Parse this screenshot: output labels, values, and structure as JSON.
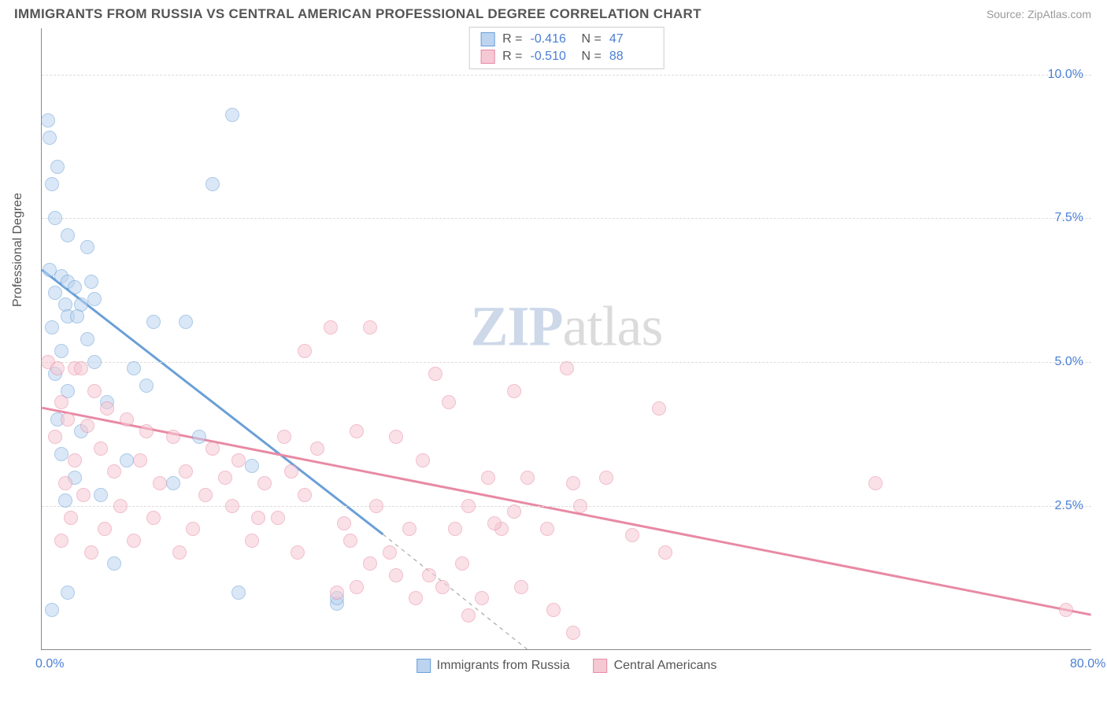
{
  "title": "IMMIGRANTS FROM RUSSIA VS CENTRAL AMERICAN PROFESSIONAL DEGREE CORRELATION CHART",
  "source": "Source: ZipAtlas.com",
  "y_axis_label": "Professional Degree",
  "watermark": {
    "bold": "ZIP",
    "rest": "atlas"
  },
  "chart": {
    "type": "scatter",
    "xlim": [
      0,
      80
    ],
    "ylim": [
      0,
      10.8
    ],
    "x_ticks": [
      {
        "value": 0,
        "label": "0.0%"
      },
      {
        "value": 80,
        "label": "80.0%"
      }
    ],
    "y_ticks": [
      {
        "value": 2.5,
        "label": "2.5%"
      },
      {
        "value": 5.0,
        "label": "5.0%"
      },
      {
        "value": 7.5,
        "label": "7.5%"
      },
      {
        "value": 10.0,
        "label": "10.0%"
      }
    ],
    "grid_color": "#dddddd",
    "axis_color": "#888888",
    "background_color": "#ffffff",
    "marker_radius": 9,
    "marker_stroke_width": 1.5,
    "trend_line_width": 3
  },
  "series": [
    {
      "name": "Immigrants from Russia",
      "fill_color": "#bcd4f0",
      "stroke_color": "#6a9fd8",
      "fill_opacity": 0.55,
      "stats": {
        "R": "-0.416",
        "N": "47"
      },
      "trend": {
        "x1": 0,
        "y1": 6.6,
        "x2": 26,
        "y2": 2.0,
        "dashed_x2": 37,
        "dashed_y2": 0
      },
      "points": [
        [
          0.5,
          9.2
        ],
        [
          0.6,
          8.9
        ],
        [
          1.2,
          8.4
        ],
        [
          0.8,
          8.1
        ],
        [
          1.0,
          7.5
        ],
        [
          2.0,
          7.2
        ],
        [
          3.5,
          7.0
        ],
        [
          0.6,
          6.6
        ],
        [
          1.5,
          6.5
        ],
        [
          2.0,
          6.4
        ],
        [
          3.8,
          6.4
        ],
        [
          2.5,
          6.3
        ],
        [
          1.0,
          6.2
        ],
        [
          4.0,
          6.1
        ],
        [
          1.8,
          6.0
        ],
        [
          3.0,
          6.0
        ],
        [
          2.0,
          5.8
        ],
        [
          2.7,
          5.8
        ],
        [
          8.5,
          5.7
        ],
        [
          0.8,
          5.6
        ],
        [
          11.0,
          5.7
        ],
        [
          14.5,
          9.3
        ],
        [
          13.0,
          8.1
        ],
        [
          1.5,
          5.2
        ],
        [
          4.0,
          5.0
        ],
        [
          7.0,
          4.9
        ],
        [
          1.0,
          4.8
        ],
        [
          8.0,
          4.6
        ],
        [
          2.0,
          4.5
        ],
        [
          5.0,
          4.3
        ],
        [
          1.2,
          4.0
        ],
        [
          3.0,
          3.8
        ],
        [
          12.0,
          3.7
        ],
        [
          1.5,
          3.4
        ],
        [
          6.5,
          3.3
        ],
        [
          16.0,
          3.2
        ],
        [
          2.5,
          3.0
        ],
        [
          10.0,
          2.9
        ],
        [
          4.5,
          2.7
        ],
        [
          1.8,
          2.6
        ],
        [
          5.5,
          1.5
        ],
        [
          2.0,
          1.0
        ],
        [
          15.0,
          1.0
        ],
        [
          0.8,
          0.7
        ],
        [
          22.5,
          0.8
        ],
        [
          22.5,
          0.9
        ],
        [
          3.5,
          5.4
        ]
      ]
    },
    {
      "name": "Central Americans",
      "fill_color": "#f5c9d4",
      "stroke_color": "#e88aa4",
      "fill_opacity": 0.55,
      "stats": {
        "R": "-0.510",
        "N": "88"
      },
      "trend": {
        "x1": 0,
        "y1": 4.2,
        "x2": 80,
        "y2": 0.6
      },
      "points": [
        [
          0.5,
          5.0
        ],
        [
          1.2,
          4.9
        ],
        [
          2.5,
          4.9
        ],
        [
          3.0,
          4.9
        ],
        [
          22.0,
          5.6
        ],
        [
          25.0,
          5.6
        ],
        [
          20.0,
          5.2
        ],
        [
          4.0,
          4.5
        ],
        [
          30.0,
          4.8
        ],
        [
          40.0,
          4.9
        ],
        [
          1.5,
          4.3
        ],
        [
          36.0,
          4.5
        ],
        [
          5.0,
          4.2
        ],
        [
          31.0,
          4.3
        ],
        [
          2.0,
          4.0
        ],
        [
          6.5,
          4.0
        ],
        [
          3.5,
          3.9
        ],
        [
          8.0,
          3.8
        ],
        [
          24.0,
          3.8
        ],
        [
          47.0,
          4.2
        ],
        [
          1.0,
          3.7
        ],
        [
          10.0,
          3.7
        ],
        [
          18.5,
          3.7
        ],
        [
          27.0,
          3.7
        ],
        [
          4.5,
          3.5
        ],
        [
          13.0,
          3.5
        ],
        [
          21.0,
          3.5
        ],
        [
          2.5,
          3.3
        ],
        [
          7.5,
          3.3
        ],
        [
          15.0,
          3.3
        ],
        [
          29.0,
          3.3
        ],
        [
          5.5,
          3.1
        ],
        [
          11.0,
          3.1
        ],
        [
          34.0,
          3.0
        ],
        [
          37.0,
          3.0
        ],
        [
          43.0,
          3.0
        ],
        [
          1.8,
          2.9
        ],
        [
          9.0,
          2.9
        ],
        [
          17.0,
          2.9
        ],
        [
          40.5,
          2.9
        ],
        [
          63.5,
          2.9
        ],
        [
          3.2,
          2.7
        ],
        [
          12.5,
          2.7
        ],
        [
          20.0,
          2.7
        ],
        [
          6.0,
          2.5
        ],
        [
          14.5,
          2.5
        ],
        [
          25.5,
          2.5
        ],
        [
          32.5,
          2.5
        ],
        [
          2.2,
          2.3
        ],
        [
          8.5,
          2.3
        ],
        [
          18.0,
          2.3
        ],
        [
          23.0,
          2.2
        ],
        [
          4.8,
          2.1
        ],
        [
          11.5,
          2.1
        ],
        [
          28.0,
          2.1
        ],
        [
          31.5,
          2.1
        ],
        [
          35.0,
          2.1
        ],
        [
          38.5,
          2.1
        ],
        [
          45.0,
          2.0
        ],
        [
          47.5,
          1.7
        ],
        [
          1.5,
          1.9
        ],
        [
          7.0,
          1.9
        ],
        [
          16.0,
          1.9
        ],
        [
          23.5,
          1.9
        ],
        [
          3.8,
          1.7
        ],
        [
          10.5,
          1.7
        ],
        [
          19.5,
          1.7
        ],
        [
          26.5,
          1.7
        ],
        [
          25.0,
          1.5
        ],
        [
          32.0,
          1.5
        ],
        [
          27.0,
          1.3
        ],
        [
          29.5,
          1.3
        ],
        [
          24.0,
          1.1
        ],
        [
          30.5,
          1.1
        ],
        [
          36.5,
          1.1
        ],
        [
          28.5,
          0.9
        ],
        [
          33.5,
          0.9
        ],
        [
          39.0,
          0.7
        ],
        [
          40.5,
          0.3
        ],
        [
          78.0,
          0.7
        ],
        [
          34.5,
          2.2
        ],
        [
          32.5,
          0.6
        ],
        [
          22.5,
          1.0
        ],
        [
          36.0,
          2.4
        ],
        [
          41.0,
          2.5
        ],
        [
          14.0,
          3.0
        ],
        [
          16.5,
          2.3
        ],
        [
          19.0,
          3.1
        ]
      ]
    }
  ],
  "stats_box": {
    "label_R": "R =",
    "label_N": "N ="
  },
  "legend": [
    {
      "series_index": 0
    },
    {
      "series_index": 1
    }
  ]
}
